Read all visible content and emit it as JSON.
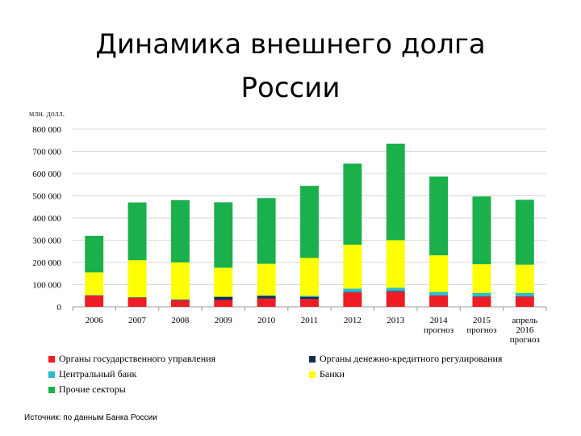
{
  "page": {
    "title_line1": "Динамика внешнего долга",
    "title_line2": "России",
    "source": "Источник: по данным Банка России"
  },
  "chart_data": {
    "type": "bar",
    "stacked": true,
    "ylabel": "млн. долл.",
    "ylim": [
      0,
      800000
    ],
    "yticks": [
      "0",
      "100 000",
      "200 000",
      "300 000",
      "400 000",
      "500 000",
      "600 000",
      "700 000",
      "800 000"
    ],
    "grid": true,
    "categories": [
      "2006",
      "2007",
      "2008",
      "2009",
      "2010",
      "2011",
      "2012",
      "2013",
      "2014 прогноз",
      "2015 прогноз",
      "апрель 2016 прогноз"
    ],
    "category_lines": [
      [
        "2006"
      ],
      [
        "2007"
      ],
      [
        "2008"
      ],
      [
        "2009"
      ],
      [
        "2010"
      ],
      [
        "2011"
      ],
      [
        "2012"
      ],
      [
        "2013"
      ],
      [
        "2014",
        "прогноз"
      ],
      [
        "2015",
        "прогноз"
      ],
      [
        "апрель",
        "2016",
        "прогноз"
      ]
    ],
    "series": [
      {
        "name": "Органы государственного управления",
        "color": "#ee1c24",
        "values": [
          50000,
          40000,
          28000,
          30000,
          37000,
          35000,
          65000,
          68000,
          50000,
          45000,
          45000
        ]
      },
      {
        "name": "Органы денежно-кредитного регулирования",
        "color": "#1b2a4a",
        "values": [
          2000,
          2000,
          4000,
          15000,
          12000,
          10000,
          2000,
          3000,
          2000,
          2000,
          2000
        ]
      },
      {
        "name": "Центральный банк",
        "color": "#2bbcd0",
        "values": [
          1000,
          1000,
          1000,
          1000,
          2000,
          5000,
          15000,
          15000,
          15000,
          15000,
          15000
        ]
      },
      {
        "name": "Банки",
        "color": "#ffff00",
        "values": [
          102000,
          167000,
          167000,
          130000,
          143000,
          170000,
          198000,
          214000,
          165000,
          130000,
          128000
        ]
      },
      {
        "name": "Прочие секторы",
        "color": "#1ab04b",
        "values": [
          165000,
          260000,
          280000,
          295000,
          296000,
          325000,
          365000,
          435000,
          355000,
          305000,
          292000
        ]
      }
    ]
  }
}
